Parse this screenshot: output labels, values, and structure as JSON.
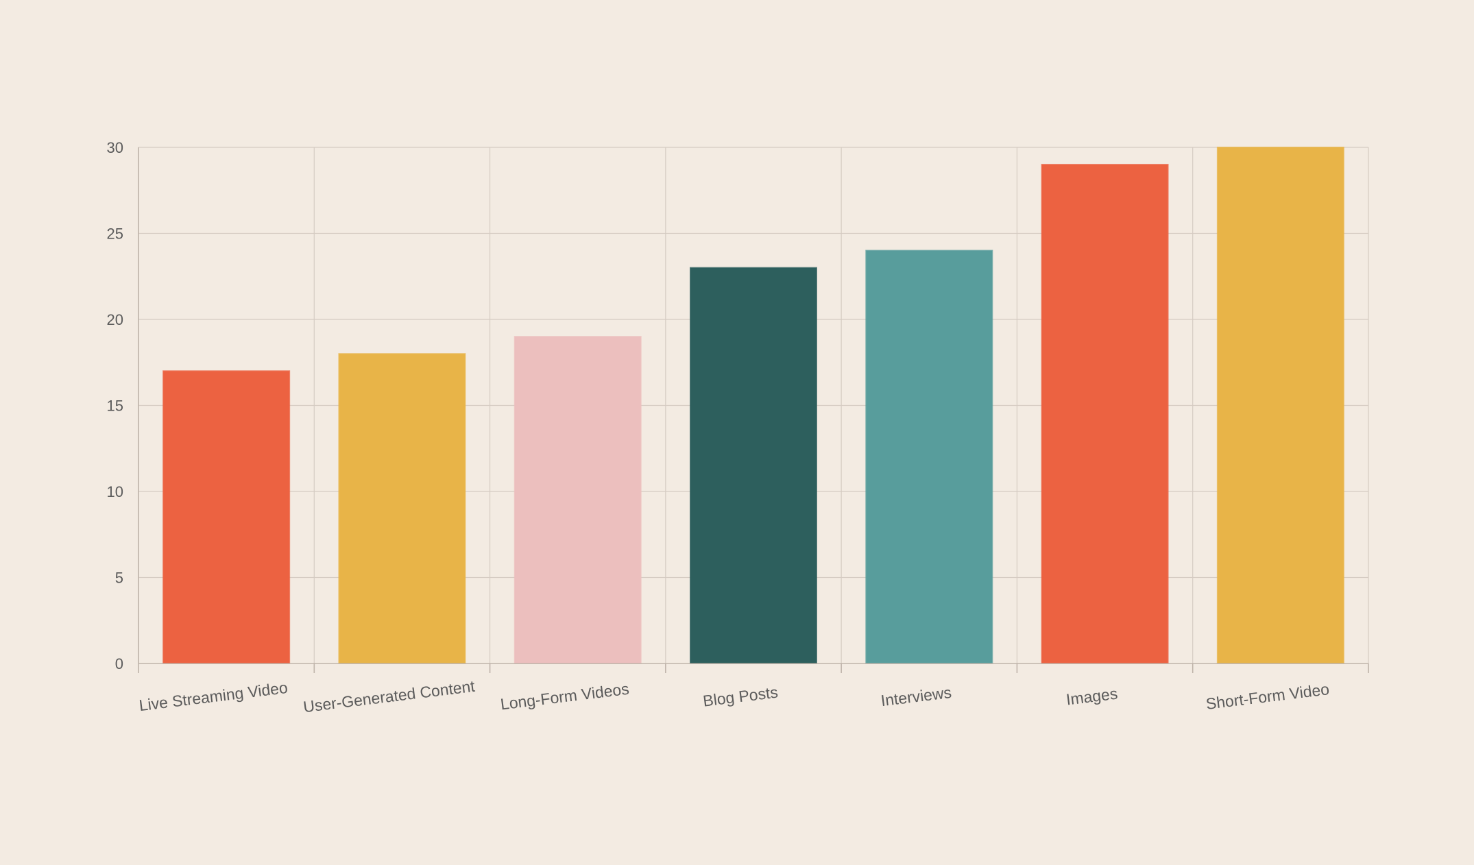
{
  "background": "#f3ebe2",
  "chart_data": {
    "type": "bar",
    "title": "",
    "xlabel": "",
    "ylabel": "",
    "categories": [
      "Live Streaming Video",
      "User-Generated Content",
      "Long-Form Videos",
      "Blog Posts",
      "Interviews",
      "Images",
      "Short-Form Video"
    ],
    "values": [
      17,
      18,
      19,
      23,
      24,
      29,
      30
    ],
    "colors": [
      "#ec6241",
      "#e8b448",
      "#ecbfbe",
      "#2d5f5d",
      "#589d9c",
      "#ec6241",
      "#e8b448"
    ],
    "ylim": [
      0,
      30
    ],
    "yticks": [
      0,
      5,
      10,
      15,
      20,
      25,
      30
    ],
    "grid": true,
    "legend": "none",
    "x_tick_rotation": "slanted"
  }
}
